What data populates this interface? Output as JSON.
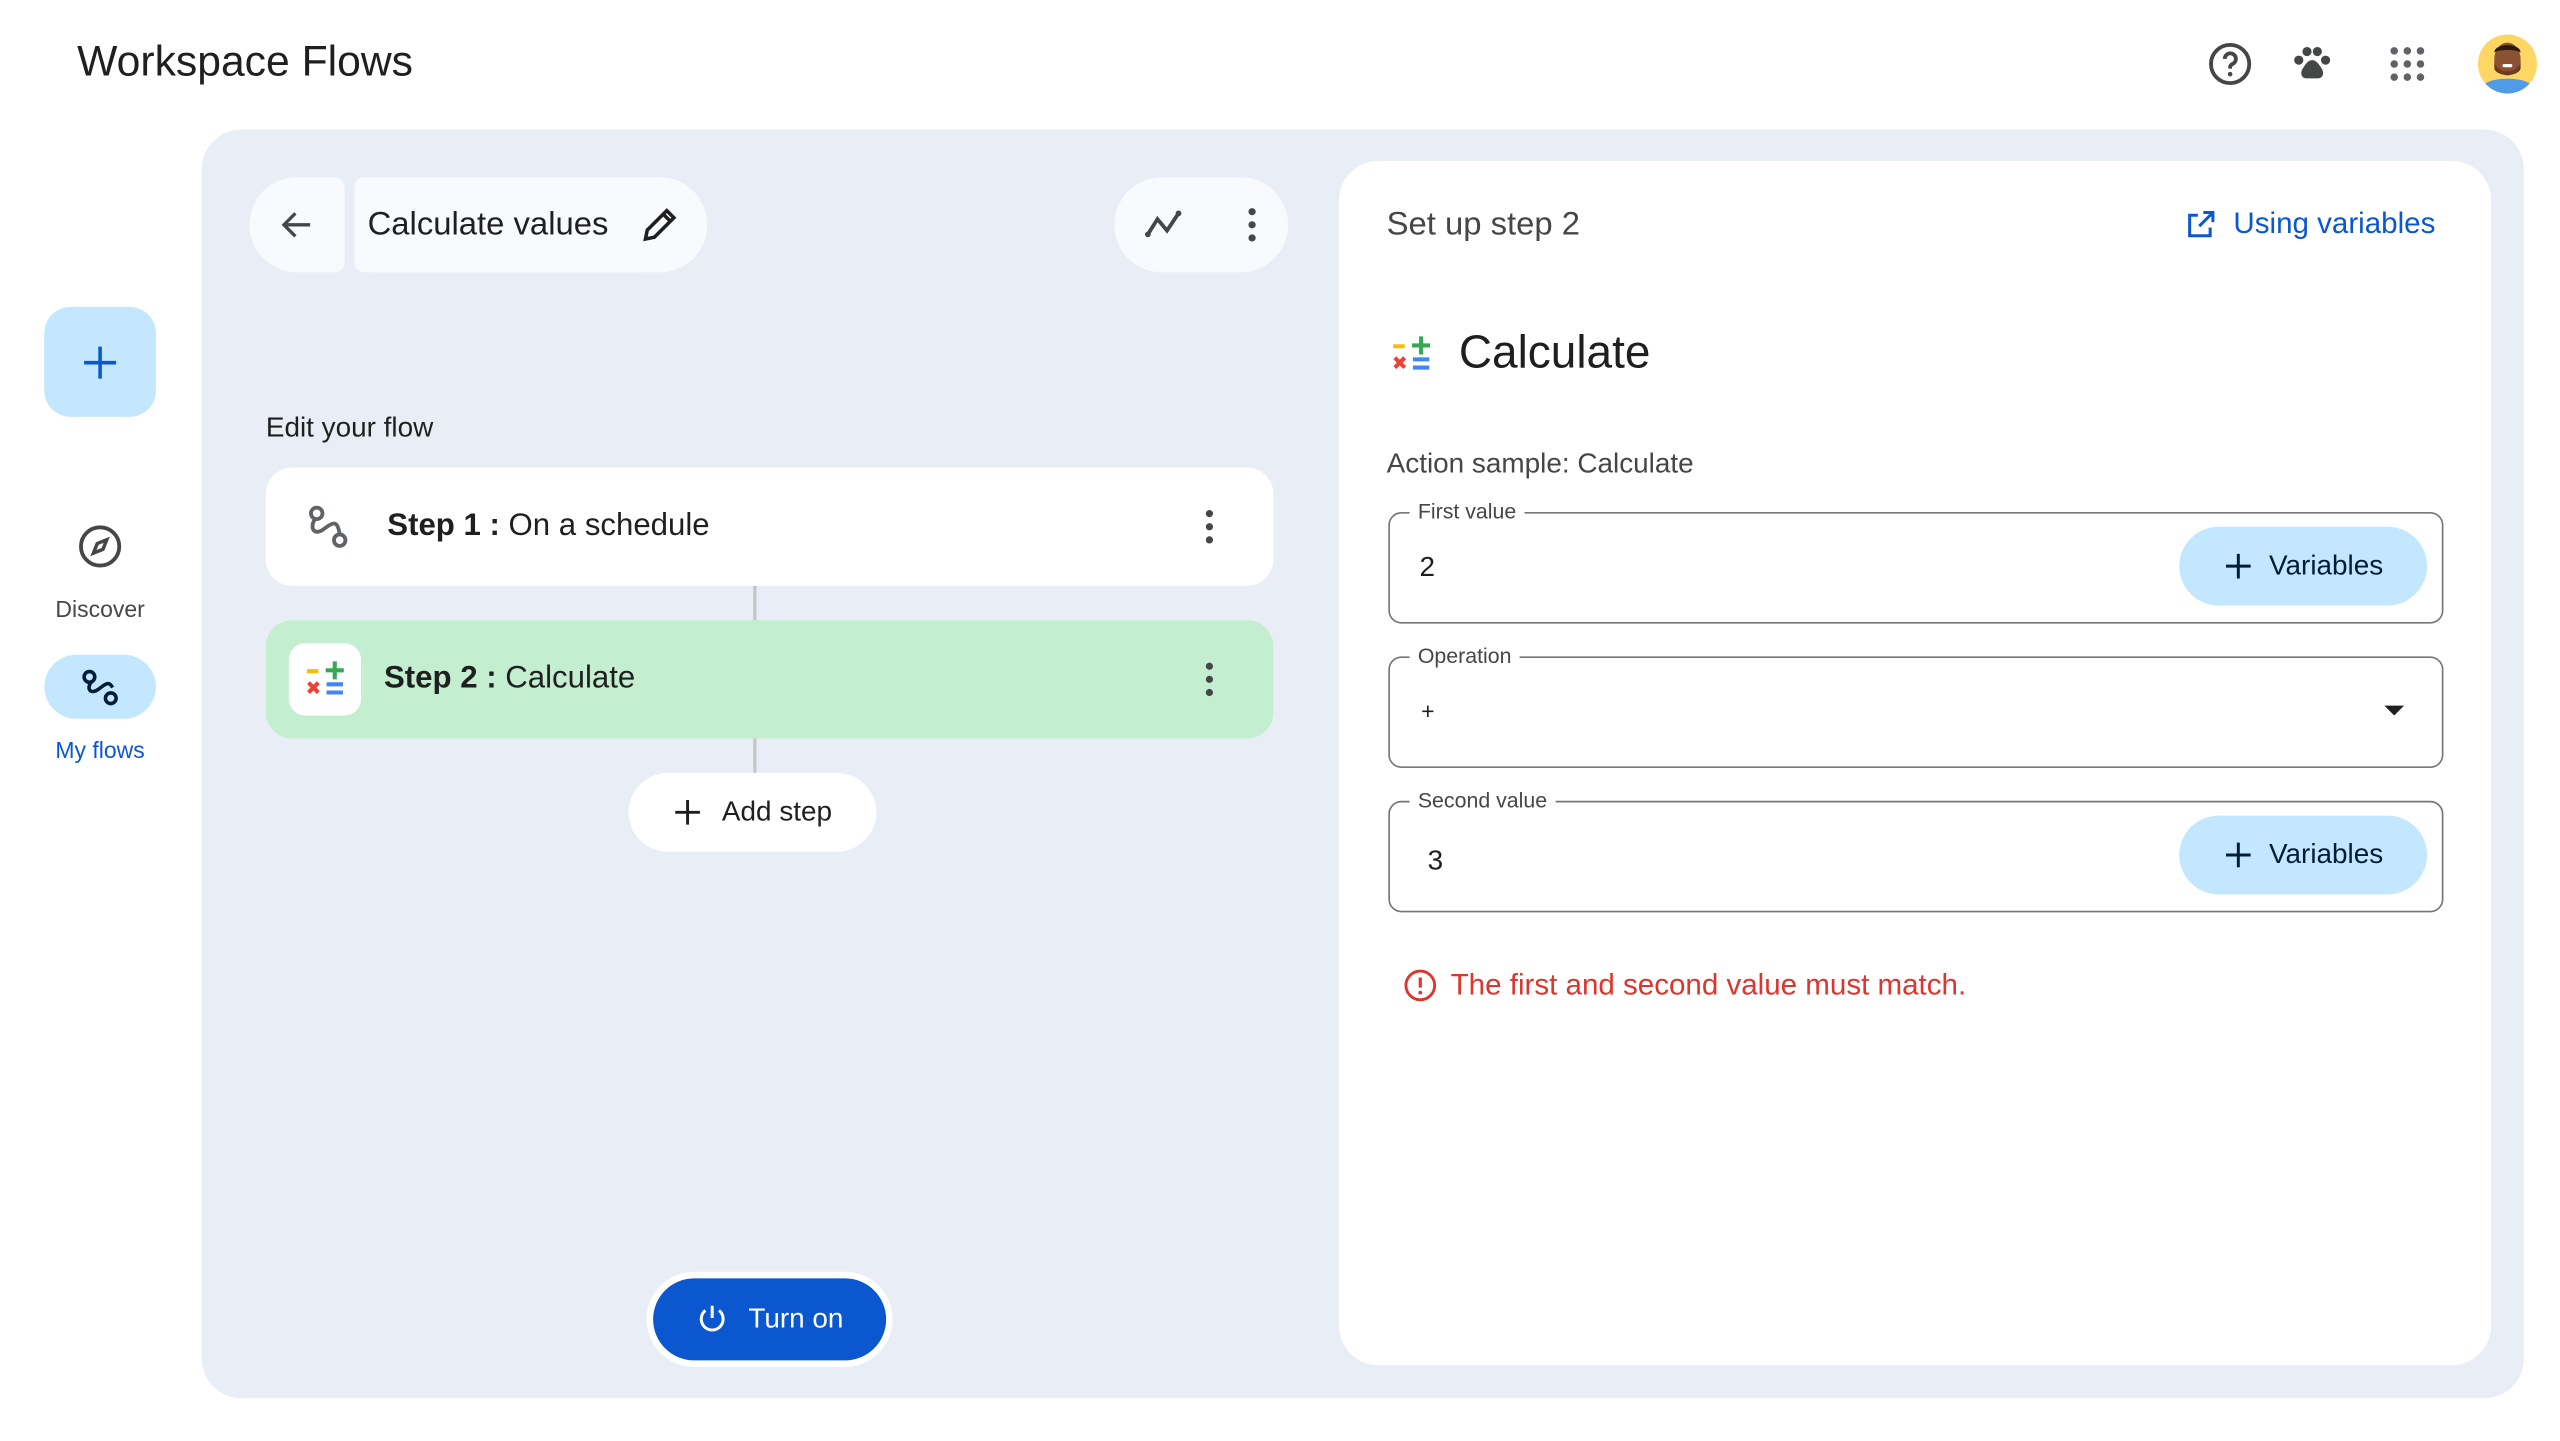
{
  "app": {
    "title": "Workspace Flows"
  },
  "topbar": {
    "icons": [
      "help-icon",
      "paw-icon",
      "apps-grid-icon",
      "avatar"
    ]
  },
  "sidebar": {
    "new_button_icon": "plus-icon",
    "items": [
      {
        "label": "Discover",
        "icon": "compass-icon",
        "active": false
      },
      {
        "label": "My flows",
        "icon": "flows-icon",
        "active": true
      }
    ]
  },
  "flow_header": {
    "title": "Calculate values"
  },
  "editor": {
    "heading": "Edit your flow",
    "steps": [
      {
        "prefix": "Step 1 :",
        "name": "On a schedule",
        "icon": "schedule-flow-icon",
        "selected": false
      },
      {
        "prefix": "Step 2 :",
        "name": "Calculate",
        "icon": "calculate-icon",
        "selected": true
      }
    ],
    "add_step_label": "Add step",
    "turn_on_label": "Turn on"
  },
  "setup": {
    "title": "Set up step 2",
    "help_link": "Using variables",
    "action_title": "Calculate",
    "action_sample": "Action sample: Calculate",
    "fields": {
      "first": {
        "label": "First value",
        "value": "2",
        "button": "Variables"
      },
      "operation": {
        "label": "Operation",
        "value": "+"
      },
      "second": {
        "label": "Second value",
        "value": "3",
        "button": "Variables"
      }
    },
    "error": "The first and second value must match."
  },
  "colors": {
    "accent": "#0b57d0",
    "tonal": "#c2e7ff",
    "selected_step": "#c4eed0",
    "error": "#dc362e",
    "surface": "#e9eef6"
  }
}
